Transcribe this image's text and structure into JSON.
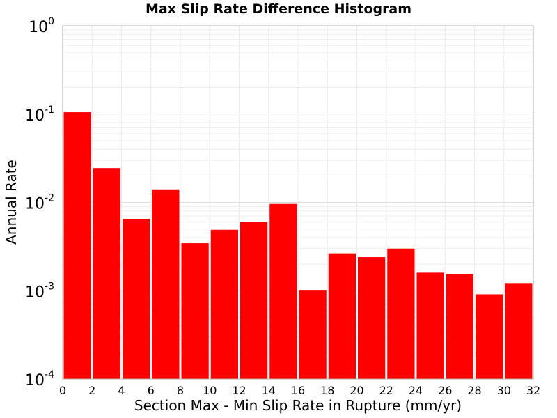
{
  "chart_data": {
    "type": "bar",
    "title": "Max Slip Rate Difference Histogram",
    "xlabel": "Section Max - Min Slip Rate in Rupture (mm/yr)",
    "ylabel": "Annual Rate",
    "xlim": [
      0,
      32
    ],
    "ylim": [
      0.0001,
      1
    ],
    "yscale": "log",
    "bin_width": 2,
    "grid": true,
    "bar_color": "#ff0000",
    "x_ticks": [
      "0",
      "2",
      "4",
      "6",
      "8",
      "10",
      "12",
      "14",
      "16",
      "18",
      "20",
      "22",
      "24",
      "26",
      "28",
      "30",
      "32"
    ],
    "y_ticks": [
      {
        "base": "10",
        "exp": "-4"
      },
      {
        "base": "10",
        "exp": "-3"
      },
      {
        "base": "10",
        "exp": "-2"
      },
      {
        "base": "10",
        "exp": "-1"
      },
      {
        "base": "10",
        "exp": "0"
      }
    ],
    "bins": [
      {
        "x": 1,
        "value": 0.105
      },
      {
        "x": 3,
        "value": 0.0245
      },
      {
        "x": 5,
        "value": 0.0065
      },
      {
        "x": 7,
        "value": 0.0138
      },
      {
        "x": 9,
        "value": 0.00345
      },
      {
        "x": 11,
        "value": 0.0049
      },
      {
        "x": 13,
        "value": 0.006
      },
      {
        "x": 15,
        "value": 0.0096
      },
      {
        "x": 17,
        "value": 0.00102
      },
      {
        "x": 19,
        "value": 0.00265
      },
      {
        "x": 21,
        "value": 0.0024
      },
      {
        "x": 23,
        "value": 0.003
      },
      {
        "x": 25,
        "value": 0.0016
      },
      {
        "x": 27,
        "value": 0.00155
      },
      {
        "x": 29,
        "value": 0.00091
      },
      {
        "x": 31,
        "value": 0.00122
      }
    ]
  }
}
